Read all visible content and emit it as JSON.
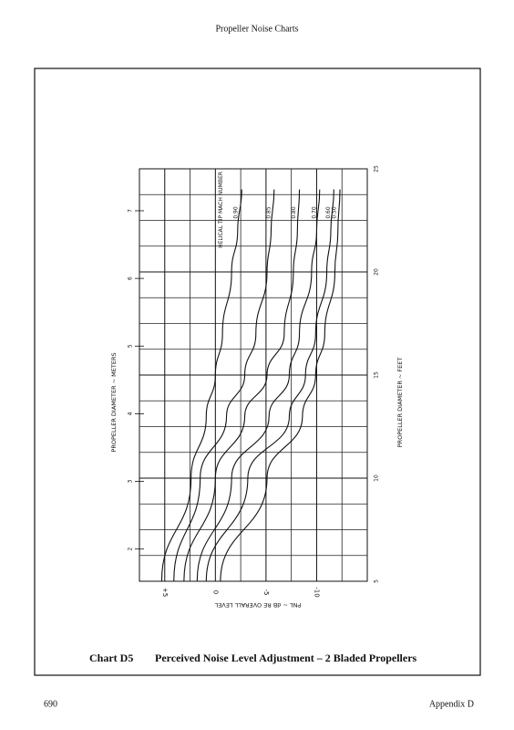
{
  "header": {
    "title": "Propeller Noise Charts"
  },
  "footer": {
    "page": "690",
    "section": "Appendix D"
  },
  "caption": {
    "label": "Chart D5",
    "text": "Perceived Noise Level Adjustment – 2 Bladed Propellers"
  },
  "chart_data": {
    "type": "line",
    "x_label": "PROPELLER DIAMETER ~ FEET",
    "x2_label": "PROPELLER DIAMETER ~ METERS",
    "y_label": "PNL ~ dB RE OVERALL LEVEL",
    "legend_title": "HELICAL TIP MACH NUMBER",
    "x": [
      5,
      10,
      13,
      15,
      17,
      20,
      22,
      24
    ],
    "xlim": [
      5,
      25
    ],
    "xticks": [
      5,
      10,
      15,
      20,
      25
    ],
    "x2lim": [
      1.524,
      7.62
    ],
    "x2ticks": [
      2,
      3,
      4,
      5,
      6,
      7
    ],
    "xgrid": [
      6.25,
      7.5,
      8.75,
      11.25,
      12.5,
      13.75,
      16.25,
      17.5,
      18.75,
      21.25,
      22.5,
      23.75
    ],
    "ylim": [
      7.5,
      -15
    ],
    "yticks": [
      {
        "value": 5,
        "label": "+5"
      },
      0,
      -5,
      -10
    ],
    "ygrid": [
      2.5,
      -2.5,
      -7.5,
      -12.5
    ],
    "color": "#111111",
    "series": [
      {
        "name": "0.90",
        "values": [
          5.3,
          2.4,
          0.9,
          0,
          -0.7,
          -1.6,
          -2.2,
          -2.6
        ]
      },
      {
        "name": "0.85",
        "values": [
          4.1,
          1.5,
          -1.1,
          -2.9,
          -4.0,
          -5.1,
          -5.5,
          -5.8
        ]
      },
      {
        "name": "0.80",
        "values": [
          3.1,
          0,
          -2.9,
          -5.1,
          -6.8,
          -7.7,
          -8.1,
          -8.3
        ]
      },
      {
        "name": "0.70",
        "values": [
          1.8,
          -1.6,
          -5.3,
          -7.3,
          -8.3,
          -9.5,
          -10,
          -10.3
        ]
      },
      {
        "name": "0.60",
        "values": [
          0.9,
          -3.2,
          -7.3,
          -8.9,
          -9.9,
          -11,
          -11.4,
          -11.7
        ]
      },
      {
        "name": "0.50",
        "values": [
          -0.5,
          -5.1,
          -8.6,
          -9.9,
          -10.8,
          -11.8,
          -12.1,
          -12.3
        ]
      }
    ]
  }
}
